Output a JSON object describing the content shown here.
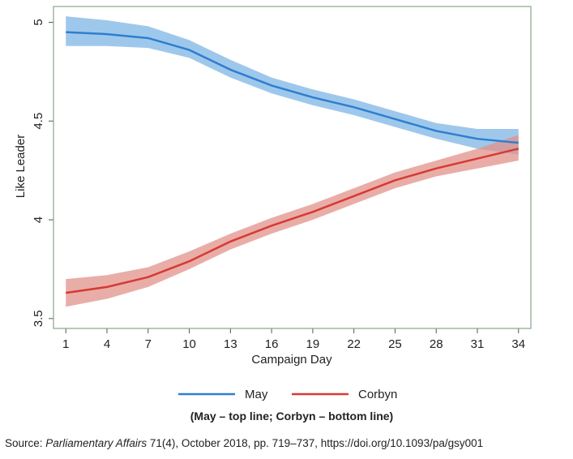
{
  "chart_data": {
    "type": "band-line",
    "x_label": "Campaign Day",
    "y_label": "Like Leader",
    "x": [
      1,
      4,
      7,
      10,
      13,
      16,
      19,
      22,
      25,
      28,
      31,
      34
    ],
    "series": [
      {
        "name": "May",
        "color": "#2f7ed0",
        "band_color": "#7db6e4",
        "values": [
          4.95,
          4.94,
          4.92,
          4.86,
          4.76,
          4.68,
          4.62,
          4.57,
          4.51,
          4.45,
          4.41,
          4.39
        ],
        "lower": [
          4.88,
          4.88,
          4.87,
          4.82,
          4.72,
          4.64,
          4.58,
          4.53,
          4.47,
          4.41,
          4.36,
          4.33
        ],
        "upper": [
          5.03,
          5.01,
          4.98,
          4.91,
          4.81,
          4.72,
          4.66,
          4.61,
          4.55,
          4.49,
          4.46,
          4.46
        ]
      },
      {
        "name": "Corbyn",
        "color": "#d63a33",
        "band_color": "#e29289",
        "values": [
          3.63,
          3.66,
          3.71,
          3.79,
          3.89,
          3.97,
          4.04,
          4.12,
          4.2,
          4.26,
          4.31,
          4.36
        ],
        "lower": [
          3.56,
          3.6,
          3.66,
          3.75,
          3.85,
          3.93,
          4.0,
          4.08,
          4.16,
          4.22,
          4.26,
          4.3
        ],
        "upper": [
          3.7,
          3.72,
          3.76,
          3.84,
          3.93,
          4.01,
          4.08,
          4.16,
          4.24,
          4.3,
          4.36,
          4.43
        ]
      }
    ],
    "xlim": [
      0.1,
      34.9
    ],
    "ylim": [
      3.45,
      5.08
    ],
    "xticks": [
      1,
      4,
      7,
      10,
      13,
      16,
      19,
      22,
      25,
      28,
      31,
      34
    ],
    "yticks": [
      3.5,
      4,
      4.5,
      5
    ],
    "caption": "(May – top line; Corbyn – bottom line)",
    "source": {
      "prefix": "Source: ",
      "journal": "Parliamentary Affairs",
      "rest": " 71(4), October 2018, pp. 719–737, https://doi.org/10.1093/pa/gsy001"
    }
  }
}
